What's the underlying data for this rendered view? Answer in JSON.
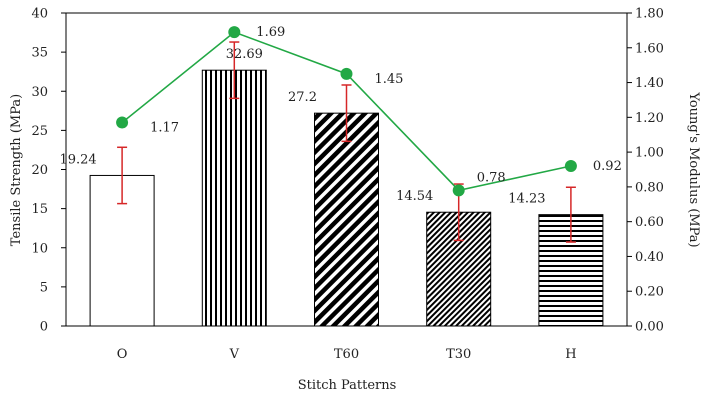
{
  "chart_data": {
    "type": "bar",
    "categories": [
      "O",
      "V",
      "T60",
      "T30",
      "H"
    ],
    "xlabel": "Stitch Patterns",
    "ylabel": "Tensile Strength (MPa)",
    "y2label": "Young's Modulus (MPa)",
    "ylim": [
      0,
      40
    ],
    "y2lim": [
      0,
      1.8
    ],
    "yticks": [
      "0",
      "5",
      "10",
      "15",
      "20",
      "25",
      "30",
      "35",
      "40"
    ],
    "y2ticks": [
      "0.00",
      "0.20",
      "0.40",
      "0.60",
      "0.80",
      "1.00",
      "1.20",
      "1.40",
      "1.60",
      "1.80"
    ],
    "bar_series": {
      "values": [
        19.24,
        32.69,
        27.2,
        14.54,
        14.23
      ],
      "labels": [
        "19.24",
        "32.69",
        "27.2",
        "14.54",
        "14.23"
      ],
      "error": [
        3.6,
        3.6,
        3.6,
        3.6,
        3.5
      ],
      "patterns": [
        "none",
        "vertical",
        "diagonal",
        "diagonal-dense",
        "horizontal"
      ],
      "error_color": "#d62728"
    },
    "line_series": {
      "values": [
        1.17,
        1.69,
        1.45,
        0.78,
        0.92
      ],
      "labels": [
        "1.17",
        "1.69",
        "1.45",
        "0.78",
        "0.92"
      ],
      "color": "#22a845"
    },
    "grid": false,
    "legend": "none"
  }
}
